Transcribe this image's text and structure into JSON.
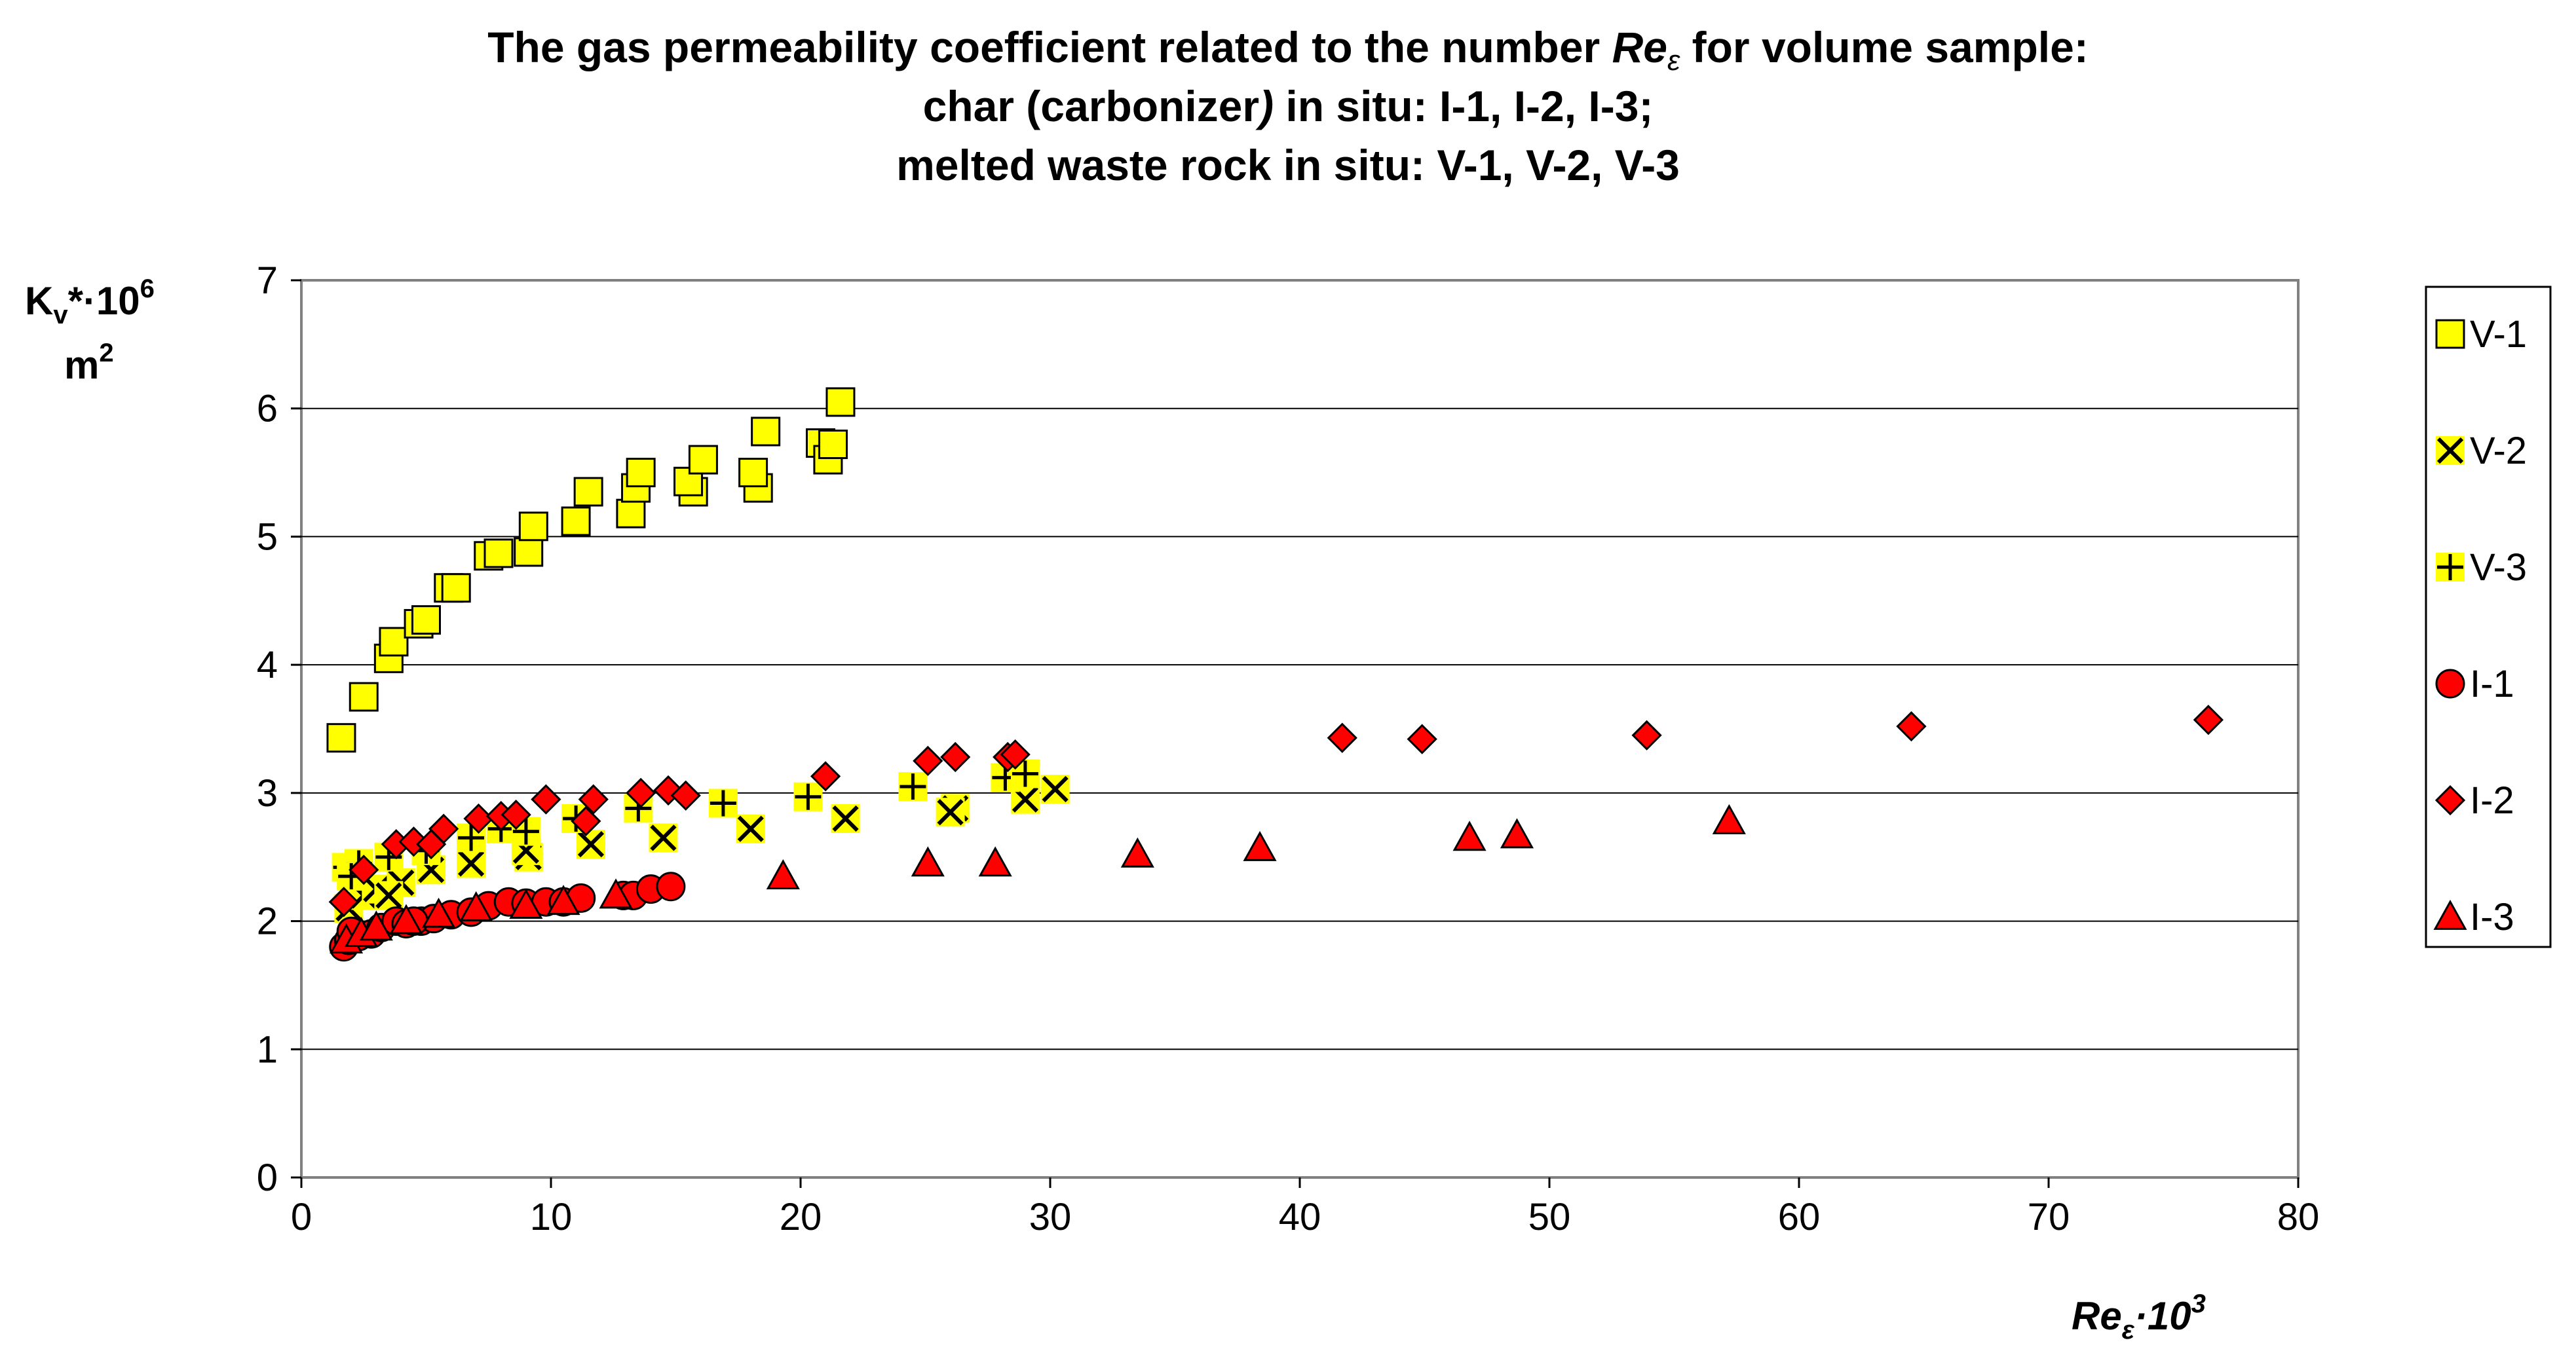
{
  "chart_data": {
    "type": "scatter",
    "title": "The gas permeability coefficient related to the number Reε for volume sample:",
    "title_parts": {
      "line1_pre": "The gas permeability coefficient related to the number ",
      "line1_re": "Re",
      "line1_eps": "ε",
      "line1_post": "  for volume sample:",
      "line2_pre": "char (carbonizer",
      "line2_paren": ")",
      "line2_post": " in situ: I-1, I-2, I-3;",
      "line3": "melted waste rock in situ: V-1, V-2, V-3"
    },
    "ylabel": {
      "k": "K",
      "v": "v",
      "star": "*·10",
      "exp": "6",
      "unit": "m",
      "unit_exp": "2"
    },
    "xlabel": {
      "re": "Re",
      "eps": "ε",
      "mult": "·10",
      "exp": "3"
    },
    "xlim": [
      0,
      80
    ],
    "ylim": [
      0,
      7
    ],
    "xticks": [
      "0",
      "10",
      "20",
      "30",
      "40",
      "50",
      "60",
      "70",
      "80"
    ],
    "yticks": [
      "0",
      "1",
      "2",
      "3",
      "4",
      "5",
      "6",
      "7"
    ],
    "grid": "horizontal",
    "legend_position": "right",
    "colors": {
      "yellow": "#ffff00",
      "red": "#ff0000",
      "black": "#000000",
      "plot_border": "#808080",
      "gridline": "#000000"
    },
    "series": [
      {
        "name": "V-1",
        "marker": "square",
        "points": [
          [
            1.6,
            3.43
          ],
          [
            2.5,
            3.75
          ],
          [
            3.5,
            4.05
          ],
          [
            3.7,
            4.18
          ],
          [
            4.7,
            4.32
          ],
          [
            5.0,
            4.35
          ],
          [
            5.9,
            4.6
          ],
          [
            6.2,
            4.6
          ],
          [
            7.5,
            4.85
          ],
          [
            7.9,
            4.87
          ],
          [
            9.1,
            4.88
          ],
          [
            9.3,
            5.08
          ],
          [
            11.0,
            5.12
          ],
          [
            11.5,
            5.35
          ],
          [
            13.2,
            5.18
          ],
          [
            13.4,
            5.38
          ],
          [
            13.6,
            5.5
          ],
          [
            15.7,
            5.35
          ],
          [
            15.5,
            5.43
          ],
          [
            16.1,
            5.6
          ],
          [
            18.3,
            5.38
          ],
          [
            18.1,
            5.5
          ],
          [
            18.6,
            5.82
          ],
          [
            20.8,
            5.73
          ],
          [
            21.1,
            5.6
          ],
          [
            21.3,
            5.72
          ],
          [
            21.6,
            6.05
          ]
        ]
      },
      {
        "name": "V-2",
        "marker": "x",
        "points": [
          [
            1.9,
            2.1
          ],
          [
            2.5,
            2.2
          ],
          [
            3.0,
            2.25
          ],
          [
            4.0,
            2.3
          ],
          [
            5.2,
            2.4
          ],
          [
            6.8,
            2.45
          ],
          [
            9.1,
            2.5
          ],
          [
            11.6,
            2.6
          ],
          [
            14.5,
            2.65
          ],
          [
            18.0,
            2.72
          ],
          [
            21.8,
            2.8
          ],
          [
            26.2,
            2.88
          ],
          [
            29.0,
            2.95
          ],
          [
            30.2,
            3.03
          ],
          [
            26.0,
            2.85
          ],
          [
            9.0,
            2.55
          ],
          [
            3.5,
            2.2
          ]
        ]
      },
      {
        "name": "V-3",
        "marker": "plus",
        "points": [
          [
            1.8,
            2.42
          ],
          [
            2.3,
            2.45
          ],
          [
            3.5,
            2.5
          ],
          [
            5.0,
            2.55
          ],
          [
            6.8,
            2.65
          ],
          [
            8.0,
            2.72
          ],
          [
            11.0,
            2.8
          ],
          [
            13.5,
            2.88
          ],
          [
            16.9,
            2.92
          ],
          [
            20.3,
            2.97
          ],
          [
            24.5,
            3.05
          ],
          [
            28.2,
            3.12
          ],
          [
            29.0,
            3.15
          ],
          [
            2.0,
            2.35
          ],
          [
            9.0,
            2.7
          ]
        ]
      },
      {
        "name": "I-1",
        "marker": "circle",
        "points": [
          [
            1.7,
            1.8
          ],
          [
            1.9,
            1.85
          ],
          [
            2.3,
            1.88
          ],
          [
            2.8,
            1.9
          ],
          [
            3.2,
            1.95
          ],
          [
            3.8,
            2.0
          ],
          [
            4.2,
            1.98
          ],
          [
            4.8,
            2.0
          ],
          [
            5.3,
            2.02
          ],
          [
            6.0,
            2.05
          ],
          [
            6.8,
            2.07
          ],
          [
            7.5,
            2.12
          ],
          [
            8.3,
            2.15
          ],
          [
            9.0,
            2.14
          ],
          [
            9.8,
            2.15
          ],
          [
            10.5,
            2.15
          ],
          [
            11.2,
            2.18
          ],
          [
            12.9,
            2.2
          ],
          [
            13.3,
            2.2
          ],
          [
            14.0,
            2.25
          ],
          [
            14.8,
            2.27
          ],
          [
            2.0,
            1.92
          ],
          [
            4.5,
            2.0
          ]
        ]
      },
      {
        "name": "I-2",
        "marker": "diamond",
        "points": [
          [
            1.7,
            2.15
          ],
          [
            2.5,
            2.4
          ],
          [
            3.8,
            2.6
          ],
          [
            4.5,
            2.62
          ],
          [
            5.2,
            2.6
          ],
          [
            5.7,
            2.72
          ],
          [
            7.1,
            2.8
          ],
          [
            8.0,
            2.82
          ],
          [
            8.6,
            2.83
          ],
          [
            9.8,
            2.95
          ],
          [
            11.4,
            2.78
          ],
          [
            11.7,
            2.95
          ],
          [
            13.6,
            3.0
          ],
          [
            14.7,
            3.02
          ],
          [
            15.4,
            2.98
          ],
          [
            21.0,
            3.13
          ],
          [
            25.1,
            3.25
          ],
          [
            26.2,
            3.28
          ],
          [
            28.3,
            3.28
          ],
          [
            28.6,
            3.3
          ],
          [
            41.7,
            3.43
          ],
          [
            44.9,
            3.42
          ],
          [
            53.9,
            3.45
          ],
          [
            64.5,
            3.52
          ],
          [
            76.4,
            3.57
          ]
        ]
      },
      {
        "name": "I-3",
        "marker": "triangle",
        "points": [
          [
            1.8,
            1.85
          ],
          [
            2.4,
            1.9
          ],
          [
            3.0,
            1.95
          ],
          [
            4.2,
            2.0
          ],
          [
            5.5,
            2.05
          ],
          [
            7.0,
            2.1
          ],
          [
            9.0,
            2.12
          ],
          [
            10.5,
            2.15
          ],
          [
            12.6,
            2.2
          ],
          [
            19.3,
            2.35
          ],
          [
            25.1,
            2.45
          ],
          [
            27.8,
            2.45
          ],
          [
            33.5,
            2.52
          ],
          [
            38.4,
            2.57
          ],
          [
            46.8,
            2.65
          ],
          [
            48.7,
            2.67
          ],
          [
            57.2,
            2.78
          ]
        ]
      }
    ]
  }
}
